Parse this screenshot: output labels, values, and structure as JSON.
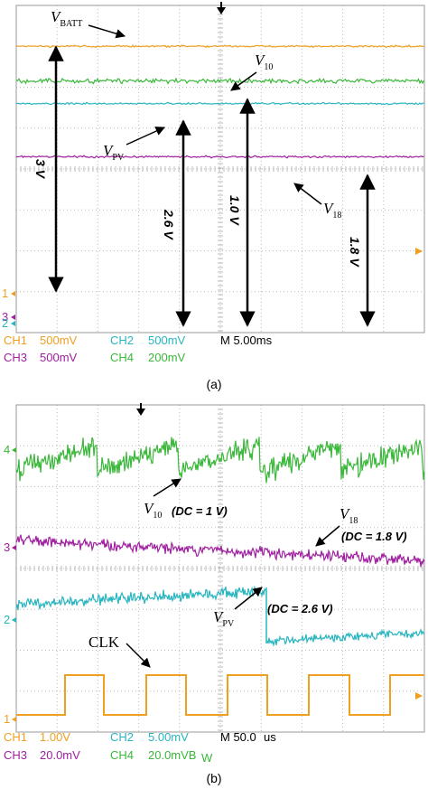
{
  "chart_data": [
    {
      "type": "line",
      "caption": "(a)",
      "status_bar": {
        "row1": [
          {
            "label": "CH1",
            "value": "500mV",
            "color": "#f0a020"
          },
          {
            "label": "CH2",
            "value": "500mV",
            "color": "#27b5bf"
          },
          {
            "label": "M 5.00ms",
            "value": "",
            "color": "#000000"
          }
        ],
        "row2": [
          {
            "label": "CH3",
            "value": "500mV",
            "color": "#a020a0"
          },
          {
            "label": "CH4",
            "value": "200mV",
            "color": "#3ab83a"
          }
        ]
      },
      "series": [
        {
          "name": "V_BATT",
          "channel": "CH1",
          "color": "#f0a020",
          "level_div": 7.0,
          "noise": "low"
        },
        {
          "name": "V_10",
          "channel": "CH4",
          "color": "#3ab83a",
          "level_div": 6.15,
          "noise": "medium"
        },
        {
          "name": "V_PV",
          "channel": "CH2",
          "color": "#27b5bf",
          "level_div": 5.6,
          "noise": "low"
        },
        {
          "name": "V_18",
          "channel": "CH3",
          "color": "#a020a0",
          "level_div": 4.3,
          "noise": "low"
        }
      ],
      "labels": {
        "vbatt": "V",
        "vbatt_sub": "BATT",
        "v10": "V",
        "v10_sub": "10",
        "vpv": "V",
        "vpv_sub": "PV",
        "v18": "V",
        "v18_sub": "18"
      },
      "measurements": [
        "3 V",
        "2.6 V",
        "1.0 V",
        "1.8 V"
      ],
      "channel_markers": [
        "1",
        "3",
        "2"
      ],
      "grid": true
    },
    {
      "type": "line",
      "caption": "(b)",
      "status_bar": {
        "row1": [
          {
            "label": "CH1",
            "value": "1.00V",
            "color": "#f0a020"
          },
          {
            "label": "CH2",
            "value": "5.00mV",
            "color": "#27b5bf"
          },
          {
            "label": "M 50.0",
            "value": "us",
            "color": "#000000"
          }
        ],
        "row2": [
          {
            "label": "CH3",
            "value": "20.0mV",
            "color": "#a020a0"
          },
          {
            "label": "CH4",
            "value": "20.0mVB",
            "color": "#3ab83a",
            "suffix": "W"
          }
        ]
      },
      "series": [
        {
          "name": "V_10",
          "channel": "CH4",
          "color": "#3ab83a",
          "dc": "(DC = 1 V)"
        },
        {
          "name": "V_18",
          "channel": "CH3",
          "color": "#a020a0",
          "dc": "(DC = 1.8 V)"
        },
        {
          "name": "V_PV",
          "channel": "CH2",
          "color": "#27b5bf",
          "dc": "(DC = 2.6 V)"
        },
        {
          "name": "CLK",
          "channel": "CH1",
          "color": "#f0a020",
          "dc": ""
        }
      ],
      "labels": {
        "v10": "V",
        "v10_sub": "10",
        "v18": "V",
        "v18_sub": "18",
        "vpv": "V",
        "vpv_sub": "PV",
        "clk": "CLK"
      },
      "channel_markers": [
        "4",
        "3",
        "2",
        "1"
      ],
      "grid": true
    }
  ]
}
